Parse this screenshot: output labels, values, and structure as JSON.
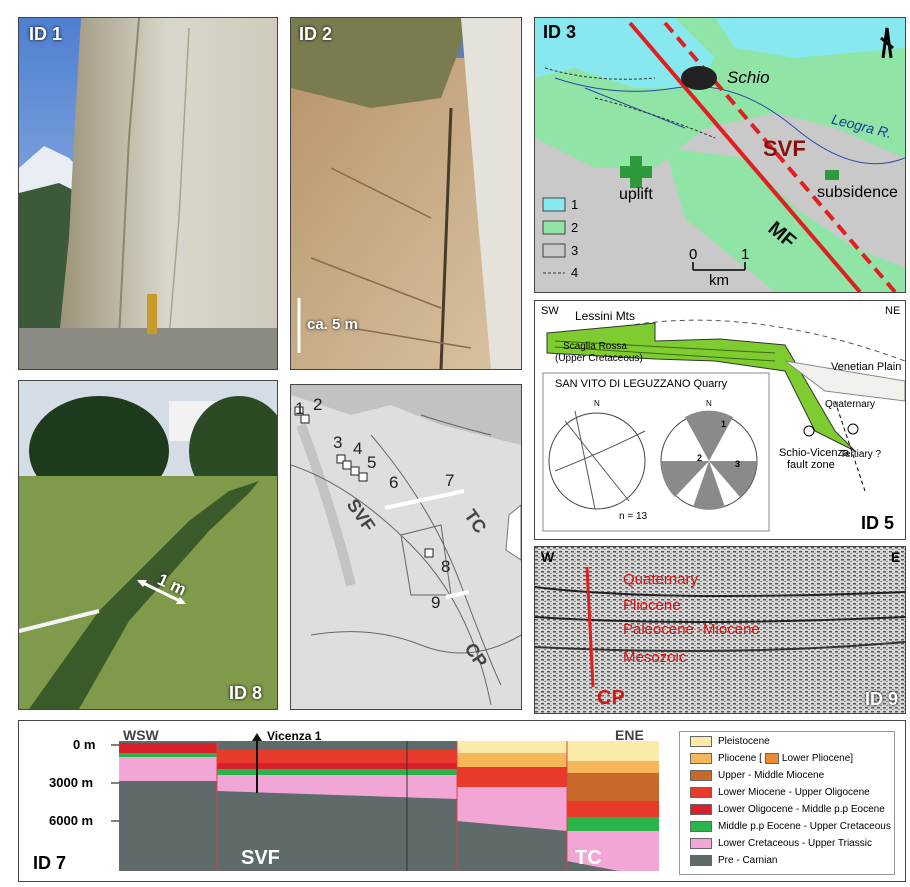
{
  "id1": {
    "label": "ID 1"
  },
  "id2": {
    "label": "ID 2",
    "scale": "ca. 5 m"
  },
  "id3": {
    "label": "ID 3",
    "town": "Schio",
    "river": "Leogra R.",
    "svf": "SVF",
    "mf": "MF",
    "uplift": "uplift",
    "subsidence": "subsidence",
    "scale_0": "0",
    "scale_1": "1",
    "scale_unit": "km",
    "legend": [
      "1",
      "2",
      "3",
      "4"
    ],
    "colors": {
      "water": "#88e8f0",
      "plain": "#8fe4a6",
      "hill": "#c9c9c9",
      "fault": "#e02020",
      "symbol": "#2f9a3c"
    }
  },
  "id5": {
    "label": "ID 5",
    "sw": "SW",
    "ne": "NE",
    "lessini": "Lessini Mts",
    "venetian": "Venetian Plain",
    "scaglia_1": "Scaglia Rossa",
    "scaglia_2": "(Upper Cretaceous)",
    "quaternary": "Quaternary",
    "tertiary": "Tertiary ?",
    "fault_zone_1": "Schio-Vicenza",
    "fault_zone_2": "fault zone",
    "quarry": "SAN VITO DI LEGUZZANO Quarry",
    "n_count": "n = 13",
    "north": "N",
    "p1": "1",
    "p2": "2",
    "p3": "3"
  },
  "id6": {
    "sites": [
      "1",
      "2",
      "3",
      "4",
      "5",
      "6",
      "7",
      "8",
      "9"
    ],
    "svf": "SVF",
    "tc": "TC",
    "cp": "CP"
  },
  "id8": {
    "label": "ID 8",
    "scale": "1 m"
  },
  "id9": {
    "label": "ID 9",
    "w": "W",
    "e": "E",
    "cp": "CP",
    "units": [
      "Quaternary",
      "Pliocene",
      "Paleocene -Miocene",
      "Mesozoic"
    ]
  },
  "id7": {
    "label": "ID 7",
    "wsw": "WSW",
    "ene": "ENE",
    "well": "Vicenza 1",
    "depths": [
      "0 m",
      "3000 m",
      "6000 m"
    ],
    "svf": "SVF",
    "tc": "TC",
    "legend": [
      {
        "label": "Pleistocene",
        "color": "#fbeaa8"
      },
      {
        "label": "Pliocene [",
        "label_b": "Lower Pliocene]",
        "color": "#f6b65a",
        "color_b": "#f08a30"
      },
      {
        "label": "Upper - Middle Miocene",
        "color": "#c8682a"
      },
      {
        "label": "Lower Miocene - Upper Oligocene",
        "color": "#e83a2a"
      },
      {
        "label": "Lower Oligocene - Middle p.p Eocene",
        "color": "#d8202a"
      },
      {
        "label": "Middle p.p Eocene - Upper Cretaceous",
        "color": "#2cb44c"
      },
      {
        "label": "Lower Cretaceous - Upper Triassic",
        "color": "#f2a6d6"
      },
      {
        "label": "Pre - Carnian",
        "color": "#5f6a6b"
      }
    ]
  }
}
